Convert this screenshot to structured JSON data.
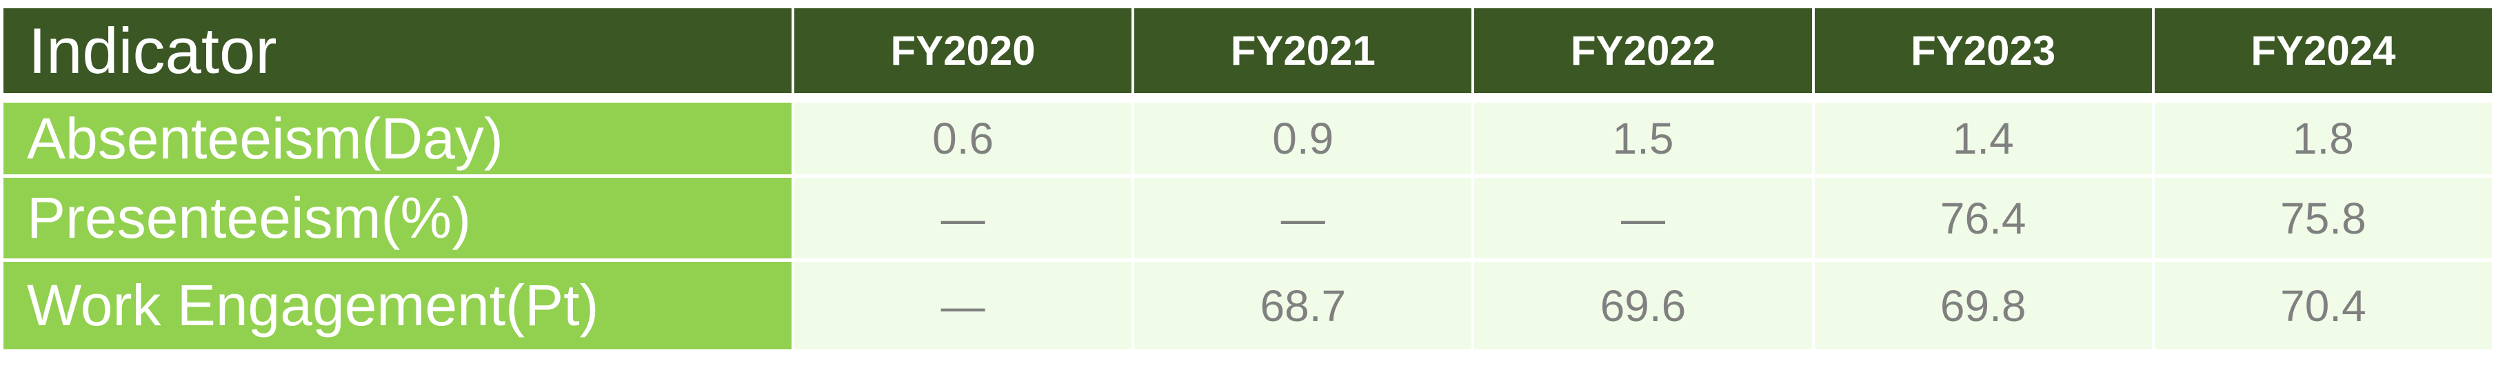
{
  "table": {
    "header": [
      "Indicator",
      "FY2020",
      "FY2021",
      "FY2022",
      "FY2023",
      "FY2024"
    ],
    "rows": [
      {
        "label": "Absenteeism(Day)",
        "values": [
          "0.6",
          "0.9",
          "1.5",
          "1.4",
          "1.8"
        ]
      },
      {
        "label": "Presenteeism(%)",
        "values": [
          "—",
          "—",
          "—",
          "76.4",
          "75.8"
        ]
      },
      {
        "label": "Work Engagement(Pt)",
        "values": [
          "—",
          "68.7",
          "69.6",
          "69.8",
          "70.4"
        ]
      }
    ]
  },
  "colors": {
    "header_bg": "#3b5724",
    "label_bg": "#92d050",
    "cell_bg": "#f0fce8",
    "value_text": "#808080"
  }
}
